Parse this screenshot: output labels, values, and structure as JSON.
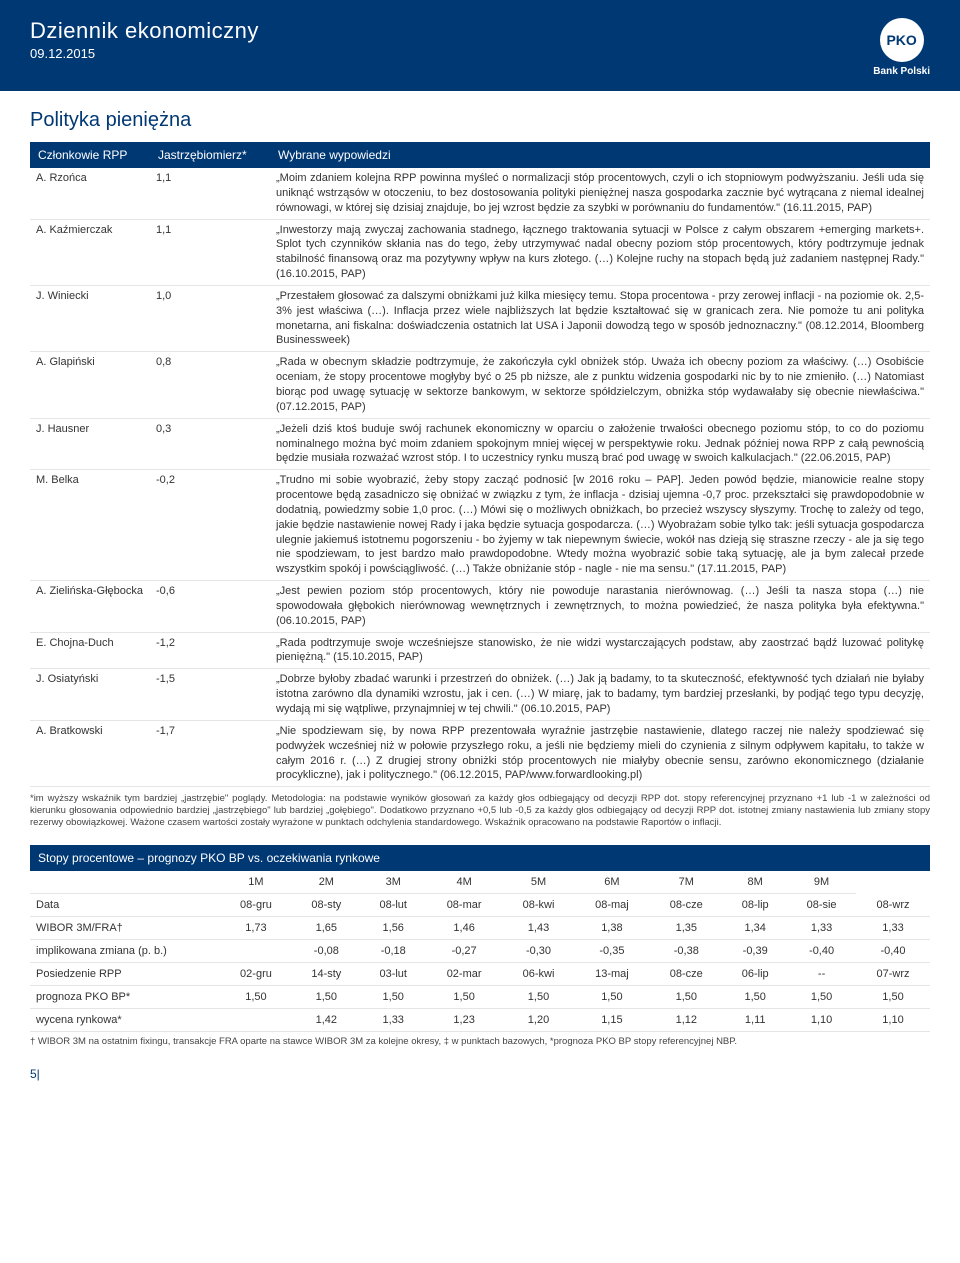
{
  "header": {
    "title": "Dziennik ekonomiczny",
    "date": "09.12.2015",
    "logo_text": "PKO",
    "logo_sub": "Bank Polski"
  },
  "section_title": "Polityka pieniężna",
  "table_header": {
    "col1": "Członkowie RPP",
    "col2": "Jastrzębiomierz*",
    "col3": "Wybrane wypowiedzi"
  },
  "members": [
    {
      "name": "A. Rzońca",
      "score": "1,1",
      "stmt": "„Moim zdaniem kolejna RPP powinna myśleć o normalizacji stóp procentowych, czyli o ich stopniowym podwyższaniu. Jeśli uda się uniknąć wstrząsów w otoczeniu, to bez dostosowania polityki pieniężnej nasza gospodarka zacznie być wytrącana z niemal idealnej równowagi, w której się dzisiaj znajduje, bo jej wzrost będzie za szybki w porównaniu do fundamentów.\" (16.11.2015, PAP)"
    },
    {
      "name": "A. Kaźmierczak",
      "score": "1,1",
      "stmt": "„Inwestorzy mają zwyczaj zachowania stadnego, łącznego traktowania sytuacji w Polsce z całym obszarem +emerging markets+. Splot tych czynników skłania nas do tego, żeby utrzymywać nadal obecny poziom stóp procentowych, który podtrzymuje jednak stabilność finansową oraz ma pozytywny wpływ na kurs złotego. (…) Kolejne ruchy na stopach będą już zadaniem następnej Rady.\" (16.10.2015, PAP)"
    },
    {
      "name": "J. Winiecki",
      "score": "1,0",
      "stmt": "„Przestałem głosować za dalszymi obniżkami już kilka miesięcy temu. Stopa procentowa - przy zerowej inflacji - na poziomie ok. 2,5-3% jest właściwa (…). Inflacja przez wiele najbliższych lat będzie kształtować się w granicach zera. Nie pomoże tu ani polityka monetarna, ani fiskalna: doświadczenia ostatnich lat USA i Japonii dowodzą tego w sposób jednoznaczny.\" (08.12.2014, Bloomberg Businessweek)"
    },
    {
      "name": "A. Glapiński",
      "score": "0,8",
      "stmt": "„Rada w obecnym składzie podtrzymuje, że zakończyła cykl obniżek stóp. Uważa ich obecny poziom za właściwy. (…) Osobiście oceniam, że stopy procentowe mogłyby być o 25 pb niższe, ale z punktu widzenia gospodarki nic by to nie zmieniło. (…) Natomiast biorąc pod uwagę sytuację w sektorze bankowym, w sektorze spółdzielczym, obniżka stóp wydawałaby się obecnie niewłaściwa.\" (07.12.2015, PAP)"
    },
    {
      "name": "J. Hausner",
      "score": "0,3",
      "stmt": "„Jeżeli dziś ktoś buduje swój rachunek ekonomiczny w oparciu o założenie trwałości obecnego poziomu stóp, to co do poziomu nominalnego można być moim zdaniem spokojnym mniej więcej w perspektywie roku. Jednak później nowa RPP z całą pewnością będzie musiała rozważać wzrost stóp. I to uczestnicy rynku muszą brać pod uwagę w swoich kalkulacjach.\" (22.06.2015, PAP)"
    },
    {
      "name": "M. Belka",
      "score": "-0,2",
      "stmt": "„Trudno mi sobie wyobrazić, żeby stopy zacząć podnosić [w 2016 roku – PAP]. Jeden powód będzie, mianowicie realne stopy procentowe będą zasadniczo się obniżać w związku z tym, że inflacja - dzisiaj ujemna -0,7 proc. przekształci się prawdopodobnie w dodatnią, powiedzmy sobie 1,0 proc. (…) Mówi się o możliwych obniżkach, bo przecież wszyscy słyszymy. Trochę to zależy od tego, jakie będzie nastawienie nowej Rady i jaka będzie sytuacja gospodarcza. (…) Wyobrażam sobie tylko tak: jeśli sytuacja gospodarcza ulegnie jakiemuś istotnemu pogorszeniu - bo żyjemy w tak niepewnym świecie, wokół nas dzieją się straszne rzeczy - ale ja się tego nie spodziewam, to jest bardzo mało prawdopodobne. Wtedy można wyobrazić sobie taką sytuację, ale ja bym zalecał przede wszystkim spokój i powściągliwość. (…) Także obniżanie stóp - nagle - nie ma sensu.\" (17.11.2015, PAP)"
    },
    {
      "name": "A. Zielińska-Głębocka",
      "score": "-0,6",
      "stmt": "„Jest pewien poziom stóp procentowych, który nie powoduje narastania nierównowag. (…) Jeśli ta nasza stopa (…) nie spowodowała głębokich nierównowag wewnętrznych i zewnętrznych, to można powiedzieć, że nasza polityka była efektywna.\" (06.10.2015, PAP)"
    },
    {
      "name": "E. Chojna-Duch",
      "score": "-1,2",
      "stmt": "„Rada podtrzymuje swoje wcześniejsze stanowisko, że nie widzi wystarczających podstaw, aby zaostrzać bądź luzować politykę pieniężną.\" (15.10.2015, PAP)"
    },
    {
      "name": "J. Osiatyński",
      "score": "-1,5",
      "stmt": "„Dobrze byłoby zbadać warunki i przestrzeń do obniżek. (…) Jak ją badamy, to ta skuteczność, efektywność tych działań nie byłaby istotna zarówno dla dynamiki wzrostu, jak i cen. (…) W miarę, jak to badamy, tym bardziej przesłanki, by podjąć tego typu decyzję, wydają mi się wątpliwe, przynajmniej w tej chwili.\" (06.10.2015, PAP)"
    },
    {
      "name": "A. Bratkowski",
      "score": "-1,7",
      "stmt": "„Nie spodziewam się, by nowa RPP prezentowała wyraźnie jastrzębie nastawienie, dlatego raczej nie należy spodziewać się podwyżek wcześniej niż w połowie przyszłego roku, a jeśli nie będziemy mieli do czynienia z silnym odpływem kapitału, to także w całym 2016 r. (…) Z drugiej strony obniżki stóp procentowych nie miałyby obecnie sensu, zarówno ekonomicznego (działanie procykliczne), jak i politycznego.\" (06.12.2015, PAP/www.forwardlooking.pl)"
    }
  ],
  "footnote": "*im wyższy wskaźnik tym bardziej „jastrzębie\" poglądy. Metodologia: na podstawie wyników głosowań za każdy głos odbiegający od decyzji RPP dot. stopy referencyjnej przyznano +1 lub -1 w zależności od kierunku głosowania odpowiednio bardziej „jastrzębiego\" lub bardziej „gołębiego\". Dodatkowo przyznano +0,5 lub -0,5 za każdy głos odbiegający od decyzji RPP dot. istotnej zmiany nastawienia lub zmiany stopy rezerwy obowiązkowej. Ważone czasem wartości zostały wyrażone w punktach odchylenia standardowego. Wskaźnik opracowano na podstawie Raportów o inflacji.",
  "forecast": {
    "title": "Stopy procentowe – prognozy PKO BP vs. oczekiwania rynkowe",
    "header_row": [
      "",
      "1M",
      "2M",
      "3M",
      "4M",
      "5M",
      "6M",
      "7M",
      "8M",
      "9M"
    ],
    "rows": [
      {
        "label": "Data",
        "cells": [
          "08-gru",
          "08-sty",
          "08-lut",
          "08-mar",
          "08-kwi",
          "08-maj",
          "08-cze",
          "08-lip",
          "08-sie",
          "08-wrz"
        ]
      },
      {
        "label": "WIBOR 3M/FRA†",
        "cells": [
          "1,73",
          "1,65",
          "1,56",
          "1,46",
          "1,43",
          "1,38",
          "1,35",
          "1,34",
          "1,33",
          "1,33"
        ]
      },
      {
        "label": "implikowana zmiana (p. b.)",
        "cells": [
          "",
          "-0,08",
          "-0,18",
          "-0,27",
          "-0,30",
          "-0,35",
          "-0,38",
          "-0,39",
          "-0,40",
          "-0,40"
        ]
      },
      {
        "label": "Posiedzenie RPP",
        "cells": [
          "02-gru",
          "14-sty",
          "03-lut",
          "02-mar",
          "06-kwi",
          "13-maj",
          "08-cze",
          "06-lip",
          "--",
          "07-wrz"
        ]
      },
      {
        "label": "prognoza PKO BP*",
        "cells": [
          "1,50",
          "1,50",
          "1,50",
          "1,50",
          "1,50",
          "1,50",
          "1,50",
          "1,50",
          "1,50",
          "1,50"
        ]
      },
      {
        "label": "wycena rynkowa*",
        "cells": [
          "",
          "1,42",
          "1,33",
          "1,23",
          "1,20",
          "1,15",
          "1,12",
          "1,11",
          "1,10",
          "1,10"
        ]
      }
    ],
    "foot": "† WIBOR 3M na ostatnim fixingu, transakcje FRA oparte na stawce WIBOR 3M za kolejne okresy, ‡ w punktach bazowych, *prognoza PKO BP stopy referencyjnej NBP."
  },
  "page_num": "5|"
}
